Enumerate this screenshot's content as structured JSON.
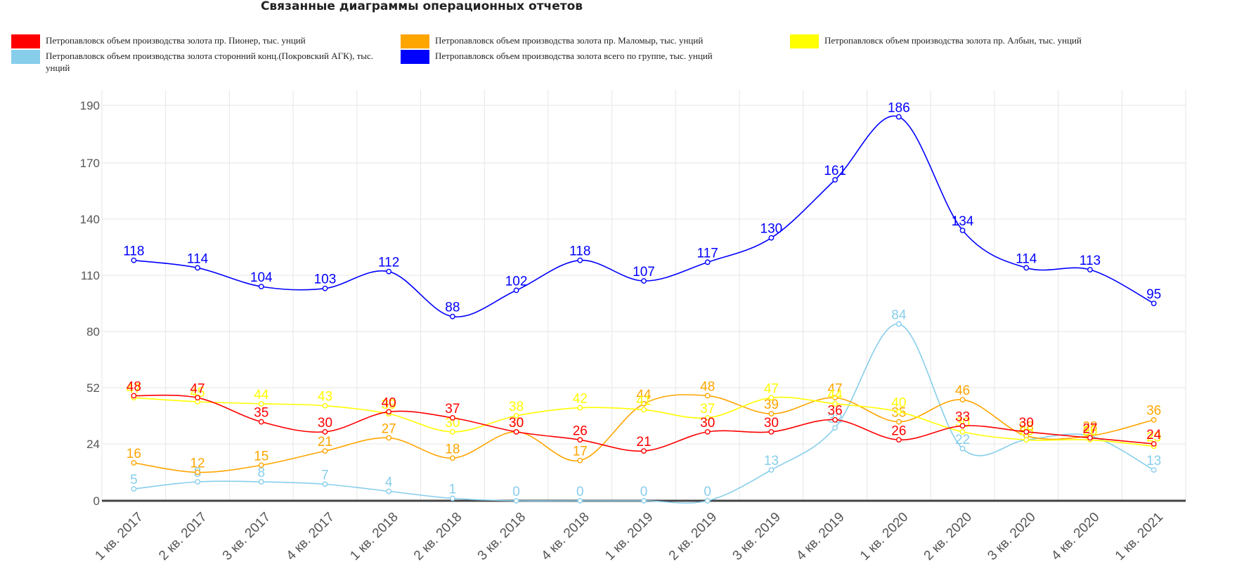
{
  "chart_data": {
    "type": "line",
    "title": "Связанные диаграммы операционных отчетов",
    "categories": [
      "1 кв. 2017",
      "2 кв. 2017",
      "3 кв. 2017",
      "4 кв. 2017",
      "1 кв. 2018",
      "2 кв. 2018",
      "3 кв. 2018",
      "4 кв. 2018",
      "1 кв. 2019",
      "2 кв. 2019",
      "3 кв. 2019",
      "4 кв. 2019",
      "1 кв. 2020",
      "2 кв. 2020",
      "3 кв. 2020",
      "4 кв. 2020",
      "1 кв. 2021"
    ],
    "y_ticks": [
      "0",
      "24",
      "52",
      "80",
      "110",
      "140",
      "170",
      "190"
    ],
    "y_tick_values": [
      0,
      24,
      52,
      80,
      110,
      140,
      170,
      190
    ],
    "grid": true,
    "legend_position": "top",
    "series": [
      {
        "name": "Петропавловск объем производства золота пр. Пионер, тыс. унций",
        "color": "#ff0000",
        "values": [
          48,
          47,
          35,
          30,
          40,
          37,
          30,
          26,
          21,
          30,
          30,
          36,
          26,
          33,
          30,
          27,
          24
        ]
      },
      {
        "name": "Петропавловск объем производства золота пр. Маломыр, тыс. унций",
        "color": "#ffa500",
        "values": [
          16,
          12,
          15,
          21,
          27,
          18,
          30,
          17,
          44,
          48,
          39,
          47,
          35,
          46,
          28,
          28,
          36
        ]
      },
      {
        "name": "Петропавловск объем производства золота пр. Албын, тыс. унций",
        "color": "#ffff00",
        "values": [
          47,
          45,
          44,
          43,
          39,
          30,
          38,
          42,
          41,
          37,
          47,
          44,
          40,
          30,
          26,
          26,
          23
        ]
      },
      {
        "name": "Петропавловск объем производства золота сторонний конц.(Покровский АГК), тыс. унций",
        "color": "#87ceeb",
        "values": [
          5,
          8,
          8,
          7,
          4,
          1,
          0,
          0,
          0,
          0,
          13,
          32,
          84,
          22,
          26,
          28,
          13
        ]
      },
      {
        "name": "Петропавловск объем производства золота всего по группе, тыс. унций",
        "color": "#0000ff",
        "values": [
          118,
          114,
          104,
          103,
          112,
          88,
          102,
          118,
          107,
          117,
          130,
          161,
          186,
          134,
          114,
          113,
          95
        ]
      }
    ]
  }
}
